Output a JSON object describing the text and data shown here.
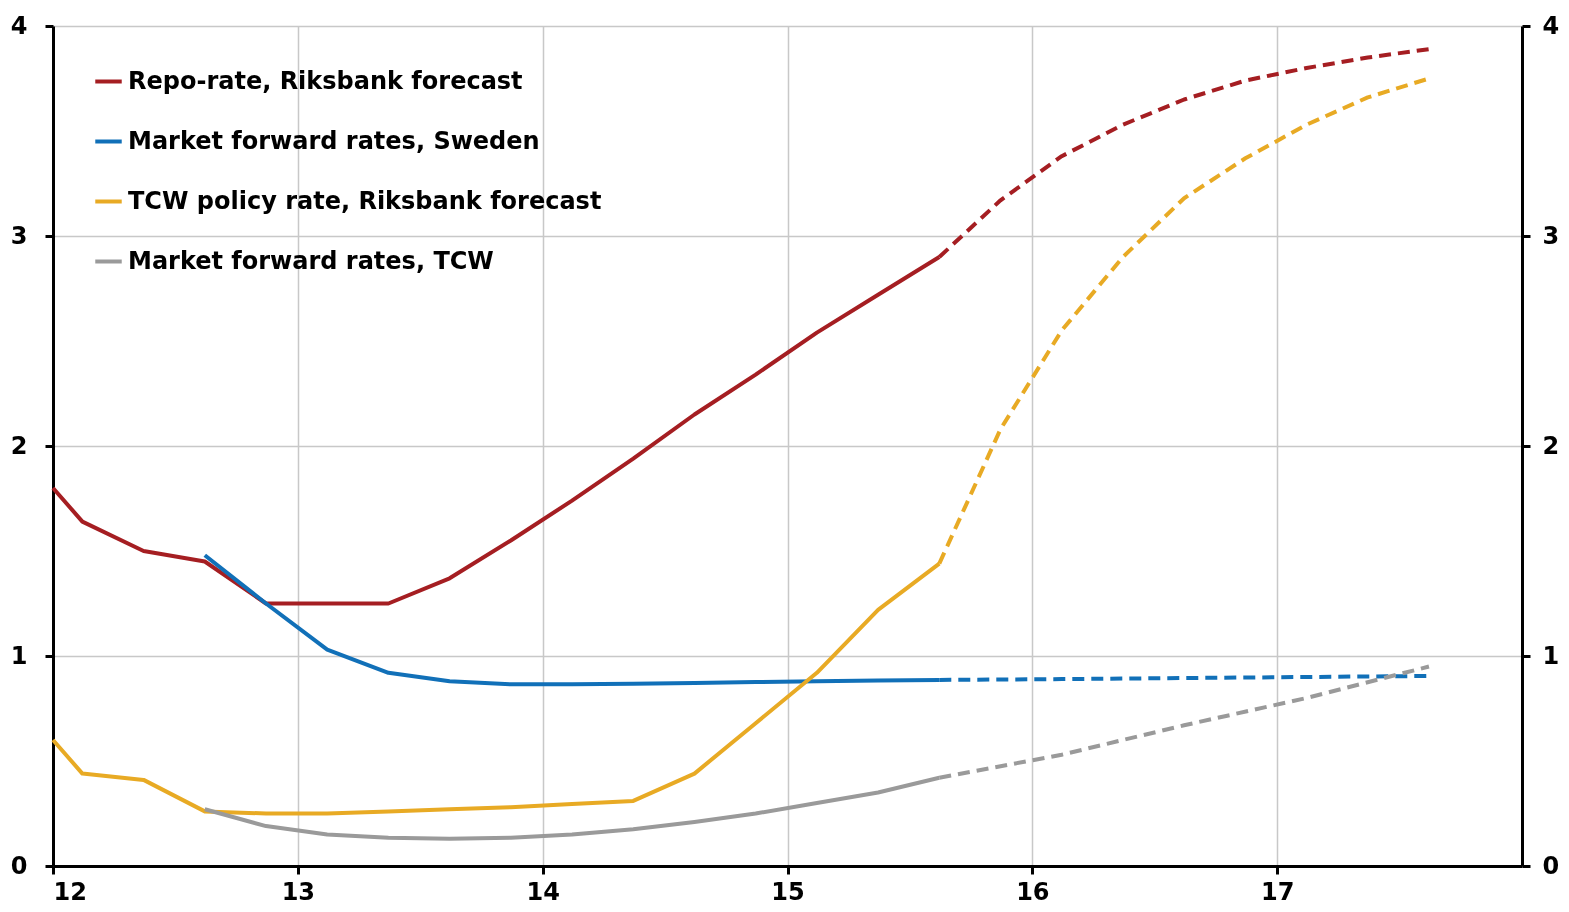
{
  "chart_data": {
    "type": "line",
    "xlim": [
      12,
      18
    ],
    "xticks": [
      12,
      13,
      14,
      15,
      16,
      17
    ],
    "ylim": [
      0,
      4
    ],
    "yticks": [
      0,
      1,
      2,
      3,
      4
    ],
    "y2lim": [
      0,
      4
    ],
    "y2ticks": [
      0,
      1,
      2,
      3,
      4
    ],
    "grid": true,
    "legend": "top left",
    "marker": "none",
    "series": [
      {
        "name": "Repo-rate, Riksbank forecast",
        "color": "#a51e22",
        "line_style": "solid",
        "x": [
          12,
          12.12,
          12.37,
          12.62,
          12.87,
          13.12,
          13.37,
          13.62,
          13.87,
          14.12,
          14.37,
          14.62,
          14.87,
          15.12,
          15.37,
          15.62
        ],
        "values": [
          1.8,
          1.64,
          1.5,
          1.45,
          1.25,
          1.25,
          1.25,
          1.37,
          1.55,
          1.74,
          1.94,
          2.15,
          2.34,
          2.54,
          2.72,
          2.9
        ]
      },
      {
        "name": "Market forward rates, Sweden",
        "color": "#1170b8",
        "line_style": "solid",
        "x": [
          12.62,
          12.87,
          13.12,
          13.37,
          13.62,
          13.87,
          14.12,
          14.37,
          14.62,
          14.87,
          15.12,
          15.37,
          15.62
        ],
        "values": [
          1.48,
          1.25,
          1.03,
          0.92,
          0.88,
          0.865,
          0.865,
          0.868,
          0.872,
          0.876,
          0.88,
          0.883,
          0.886
        ]
      },
      {
        "name": "TCW policy rate, Riksbank forecast",
        "color": "#e8aa24",
        "line_style": "solid",
        "x": [
          12,
          12.12,
          12.37,
          12.62,
          12.87,
          13.12,
          13.37,
          13.62,
          13.87,
          14.12,
          14.37,
          14.62,
          14.87,
          15.12,
          15.37,
          15.62
        ],
        "values": [
          0.6,
          0.44,
          0.41,
          0.26,
          0.25,
          0.25,
          0.26,
          0.27,
          0.28,
          0.295,
          0.31,
          0.44,
          0.68,
          0.92,
          1.22,
          1.44
        ]
      },
      {
        "name": "Market forward rates, TCW",
        "color": "#9a9a9a",
        "line_style": "solid",
        "x": [
          12.62,
          12.87,
          13.12,
          13.37,
          13.62,
          13.87,
          14.12,
          14.37,
          14.62,
          14.87,
          15.12,
          15.37,
          15.62
        ],
        "values": [
          0.27,
          0.19,
          0.15,
          0.135,
          0.13,
          0.135,
          0.15,
          0.175,
          0.21,
          0.25,
          0.3,
          0.35,
          0.42
        ]
      },
      {
        "color": "#a51e22",
        "line_style": "dashed",
        "x": [
          15.62,
          15.87,
          16.12,
          16.37,
          16.62,
          16.87,
          17.12,
          17.37,
          17.62
        ],
        "values": [
          2.9,
          3.17,
          3.38,
          3.53,
          3.65,
          3.74,
          3.8,
          3.85,
          3.89
        ]
      },
      {
        "color": "#1170b8",
        "line_style": "dashed",
        "x": [
          15.62,
          16.12,
          16.62,
          17.12,
          17.62
        ],
        "values": [
          0.886,
          0.89,
          0.895,
          0.9,
          0.905
        ]
      },
      {
        "color": "#e8aa24",
        "line_style": "dashed",
        "x": [
          15.62,
          15.87,
          16.12,
          16.37,
          16.62,
          16.87,
          17.12,
          17.37,
          17.62
        ],
        "values": [
          1.44,
          2.08,
          2.55,
          2.9,
          3.18,
          3.37,
          3.53,
          3.66,
          3.75
        ]
      },
      {
        "color": "#9a9a9a",
        "line_style": "dashed",
        "x": [
          15.62,
          16.12,
          16.62,
          17.12,
          17.62
        ],
        "values": [
          0.42,
          0.53,
          0.67,
          0.8,
          0.95
        ]
      }
    ]
  }
}
